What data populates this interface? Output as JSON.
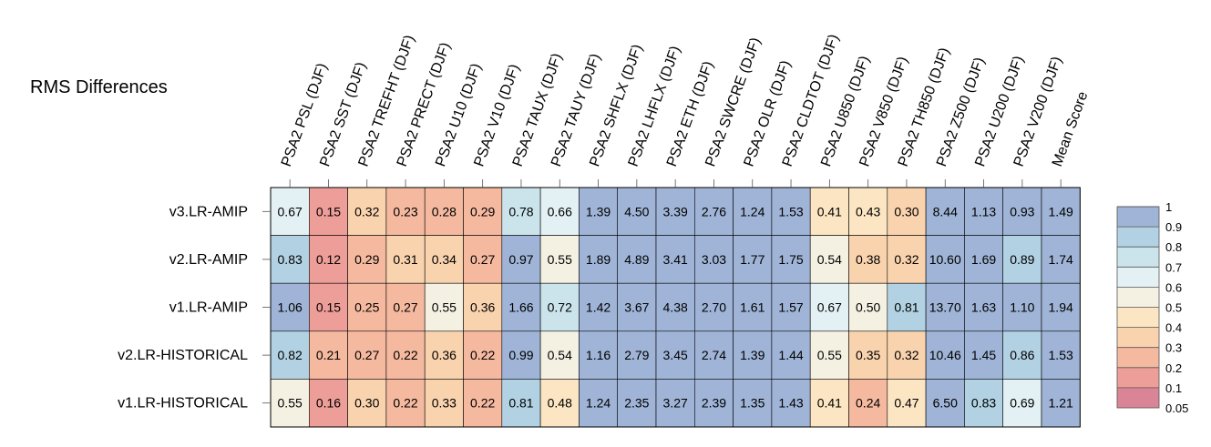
{
  "chart_data": {
    "type": "heatmap",
    "title": "RMS Differences",
    "columns": [
      "PSA2 PSL (DJF)",
      "PSA2 SST (DJF)",
      "PSA2 TREFHT (DJF)",
      "PSA2 PRECT (DJF)",
      "PSA2 U10 (DJF)",
      "PSA2 V10 (DJF)",
      "PSA2 TAUX (DJF)",
      "PSA2 TAUY (DJF)",
      "PSA2 SHFLX (DJF)",
      "PSA2 LHFLX (DJF)",
      "PSA2 ETH (DJF)",
      "PSA2 SWCRE (DJF)",
      "PSA2 OLR (DJF)",
      "PSA2 CLDTOT (DJF)",
      "PSA2 U850 (DJF)",
      "PSA2 V850 (DJF)",
      "PSA2 TH850 (DJF)",
      "PSA2 Z500 (DJF)",
      "PSA2 U200 (DJF)",
      "PSA2 V200 (DJF)",
      "Mean Score"
    ],
    "rows": [
      "v3.LR-AMIP",
      "v2.LR-AMIP",
      "v1.LR-AMIP",
      "v2.LR-HISTORICAL",
      "v1.LR-HISTORICAL"
    ],
    "values": [
      [
        "0.67",
        "0.15",
        "0.32",
        "0.23",
        "0.28",
        "0.29",
        "0.78",
        "0.66",
        "1.39",
        "4.50",
        "3.39",
        "2.76",
        "1.24",
        "1.53",
        "0.41",
        "0.43",
        "0.30",
        "8.44",
        "1.13",
        "0.93",
        "1.49"
      ],
      [
        "0.83",
        "0.12",
        "0.29",
        "0.31",
        "0.34",
        "0.27",
        "0.97",
        "0.55",
        "1.89",
        "4.89",
        "3.41",
        "3.03",
        "1.77",
        "1.75",
        "0.54",
        "0.38",
        "0.32",
        "10.60",
        "1.69",
        "0.89",
        "1.74"
      ],
      [
        "1.06",
        "0.15",
        "0.25",
        "0.27",
        "0.55",
        "0.36",
        "1.66",
        "0.72",
        "1.42",
        "3.67",
        "4.38",
        "2.70",
        "1.61",
        "1.57",
        "0.67",
        "0.50",
        "0.81",
        "13.70",
        "1.63",
        "1.10",
        "1.94"
      ],
      [
        "0.82",
        "0.21",
        "0.27",
        "0.22",
        "0.36",
        "0.22",
        "0.99",
        "0.54",
        "1.16",
        "2.79",
        "3.45",
        "2.74",
        "1.39",
        "1.44",
        "0.55",
        "0.35",
        "0.32",
        "10.46",
        "1.45",
        "0.86",
        "1.53"
      ],
      [
        "0.55",
        "0.16",
        "0.30",
        "0.22",
        "0.33",
        "0.22",
        "0.81",
        "0.48",
        "1.24",
        "2.35",
        "3.27",
        "2.39",
        "1.35",
        "1.43",
        "0.41",
        "0.24",
        "0.47",
        "6.50",
        "0.83",
        "0.69",
        "1.21"
      ]
    ],
    "legend": {
      "placement": "right",
      "levels": [
        0.05,
        0.1,
        0.2,
        0.3,
        0.4,
        0.5,
        0.6,
        0.7,
        0.8,
        0.9,
        1
      ],
      "labels": [
        "0.05",
        "0.1",
        "0.2",
        "0.3",
        "0.4",
        "0.5",
        "0.6",
        "0.7",
        "0.8",
        "0.9",
        "1"
      ],
      "colors": [
        "#d98497",
        "#ee9e99",
        "#f5b9a0",
        "#f9d3ae",
        "#fbe5c2",
        "#f4f1e3",
        "#e4f1f4",
        "#cbe4ec",
        "#b2d2e3",
        "#9fb4d6"
      ]
    }
  }
}
